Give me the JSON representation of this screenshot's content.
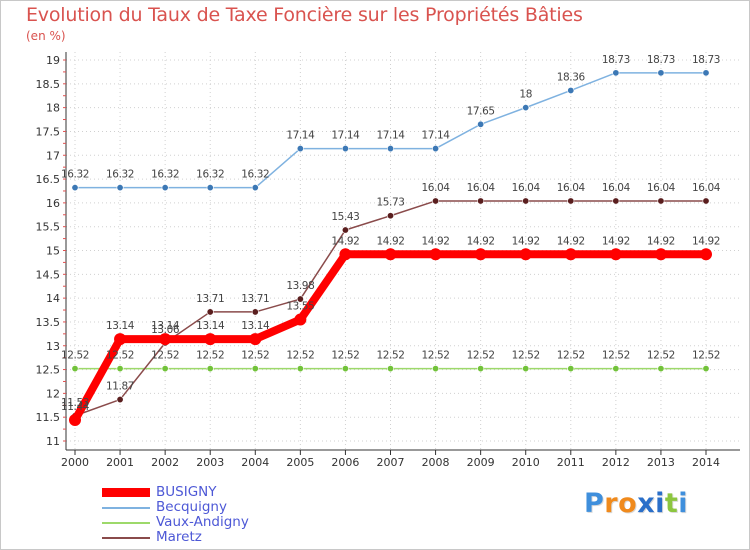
{
  "header": {
    "title": "Evolution du Taux de Taxe Foncière sur les Propriétés Bâties",
    "subtitle": "(en %)"
  },
  "logo": {
    "letters": [
      "P",
      "r",
      "o",
      "x",
      "i",
      "t",
      "i"
    ],
    "colors": [
      "#3f8fdc",
      "#f08a1c",
      "#f08a1c",
      "#2a6fc9",
      "#2a6fc9",
      "#8cc63f",
      "#3f8fdc"
    ]
  },
  "chart_data": {
    "type": "line",
    "title": "Evolution du Taux de Taxe Foncière sur les Propriétés Bâties",
    "ylabel": "(en %)",
    "xlabel": "",
    "x": [
      "2000",
      "2001",
      "2002",
      "2003",
      "2004",
      "2005",
      "2006",
      "2007",
      "2008",
      "2009",
      "2010",
      "2011",
      "2012",
      "2013",
      "2014"
    ],
    "ylim": [
      11,
      19
    ],
    "yticks": [
      "11",
      "11.5",
      "12",
      "12.5",
      "13",
      "13.5",
      "14",
      "14.5",
      "15",
      "15.5",
      "16",
      "16.5",
      "17",
      "17.5",
      "18",
      "18.5",
      "19"
    ],
    "legend_position": "bottom-left",
    "series": [
      {
        "name": "BUSIGNY",
        "color": "#ff0000",
        "marker": "#ff0000",
        "values": [
          11.44,
          13.14,
          13.14,
          13.14,
          13.14,
          13.55,
          14.92,
          14.92,
          14.92,
          14.92,
          14.92,
          14.92,
          14.92,
          14.92,
          14.92
        ],
        "labels": [
          "11.44",
          "13.14",
          "13.14",
          "13.14",
          "13.14",
          "13.55",
          "14.92",
          "14.92",
          "14.92",
          "14.92",
          "14.92",
          "14.92",
          "14.92",
          "14.92",
          "14.92"
        ]
      },
      {
        "name": "Becquigny",
        "color": "#7fb2e0",
        "marker": "#3c78b5",
        "values": [
          16.32,
          16.32,
          16.32,
          16.32,
          16.32,
          17.14,
          17.14,
          17.14,
          17.14,
          17.65,
          18,
          18.36,
          18.73,
          18.73,
          18.73
        ],
        "labels": [
          "16.32",
          "16.32",
          "16.32",
          "16.32",
          "16.32",
          "17.14",
          "17.14",
          "17.14",
          "17.14",
          "17.65",
          "18",
          "18.36",
          "18.73",
          "18.73",
          "18.73"
        ]
      },
      {
        "name": "Vaux-Andigny",
        "color": "#9dd96a",
        "marker": "#72c23a",
        "values": [
          12.52,
          12.52,
          12.52,
          12.52,
          12.52,
          12.52,
          12.52,
          12.52,
          12.52,
          12.52,
          12.52,
          12.52,
          12.52,
          12.52,
          12.52
        ],
        "labels": [
          "12.52",
          "12.52",
          "12.52",
          "12.52",
          "12.52",
          "12.52",
          "12.52",
          "12.52",
          "12.52",
          "12.52",
          "12.52",
          "12.52",
          "12.52",
          "12.52",
          "12.52"
        ]
      },
      {
        "name": "Maretz",
        "color": "#8a4b4b",
        "marker": "#5a1e1e",
        "values": [
          11.53,
          11.87,
          13.06,
          13.71,
          13.71,
          13.98,
          15.43,
          15.73,
          16.04,
          16.04,
          16.04,
          16.04,
          16.04,
          16.04,
          16.04
        ],
        "labels": [
          "11.53",
          "11.87",
          "13.06",
          "13.71",
          "13.71",
          "13.98",
          "15.43",
          "15.73",
          "16.04",
          "16.04",
          "16.04",
          "16.04",
          "16.04",
          "16.04",
          "16.04"
        ]
      }
    ]
  }
}
